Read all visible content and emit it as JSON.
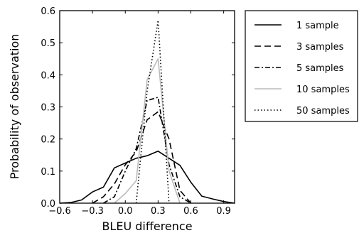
{
  "chart_data": {
    "type": "line",
    "xlabel": "BLEU difference",
    "ylabel": "Probability of observation",
    "xlim": [
      -0.6,
      1.0
    ],
    "ylim": [
      0.0,
      0.6
    ],
    "x_ticks": [
      -0.6,
      -0.3,
      0.0,
      0.3,
      0.6,
      0.9
    ],
    "x_tick_labels": [
      "−0.6",
      "−0.3",
      "0.0",
      "0.3",
      "0.6",
      "0.9"
    ],
    "y_ticks": [
      0.0,
      0.1,
      0.2,
      0.3,
      0.4,
      0.5,
      0.6
    ],
    "y_tick_labels": [
      "0.0",
      "0.1",
      "0.2",
      "0.3",
      "0.4",
      "0.5",
      "0.6"
    ],
    "grid": false,
    "legend_position": "outside-right",
    "series": [
      {
        "name": "1 sample",
        "style": "solid",
        "color": "#000000",
        "x": [
          -0.6,
          -0.5,
          -0.4,
          -0.3,
          -0.2,
          -0.1,
          0.0,
          0.1,
          0.2,
          0.3,
          0.4,
          0.5,
          0.6,
          0.7,
          0.8,
          0.9,
          1.0
        ],
        "y": [
          0.0,
          0.002,
          0.01,
          0.035,
          0.05,
          0.11,
          0.125,
          0.14,
          0.148,
          0.162,
          0.14,
          0.118,
          0.065,
          0.022,
          0.013,
          0.005,
          0.0
        ]
      },
      {
        "name": "3 samples",
        "style": "dashed",
        "color": "#000000",
        "x": [
          -0.3,
          -0.2,
          -0.1,
          0.0,
          0.1,
          0.2,
          0.3,
          0.4,
          0.5,
          0.6
        ],
        "y": [
          0.0,
          0.02,
          0.06,
          0.12,
          0.16,
          0.26,
          0.285,
          0.2,
          0.04,
          0.0
        ]
      },
      {
        "name": "5 samples",
        "style": "dashdot",
        "color": "#000000",
        "x": [
          -0.2,
          -0.1,
          0.0,
          0.1,
          0.2,
          0.3,
          0.4,
          0.5,
          0.6
        ],
        "y": [
          0.0,
          0.02,
          0.1,
          0.17,
          0.32,
          0.33,
          0.12,
          0.02,
          0.0
        ]
      },
      {
        "name": "10 samples",
        "style": "solid",
        "color": "#bbbbbb",
        "x": [
          -0.1,
          0.0,
          0.1,
          0.2,
          0.3,
          0.4,
          0.5
        ],
        "y": [
          0.0,
          0.03,
          0.07,
          0.385,
          0.45,
          0.1,
          0.0
        ]
      },
      {
        "name": "50 samples",
        "style": "dotted",
        "color": "#000000",
        "x": [
          0.1,
          0.2,
          0.3,
          0.4
        ],
        "y": [
          0.0,
          0.35,
          0.57,
          0.0
        ]
      }
    ]
  }
}
